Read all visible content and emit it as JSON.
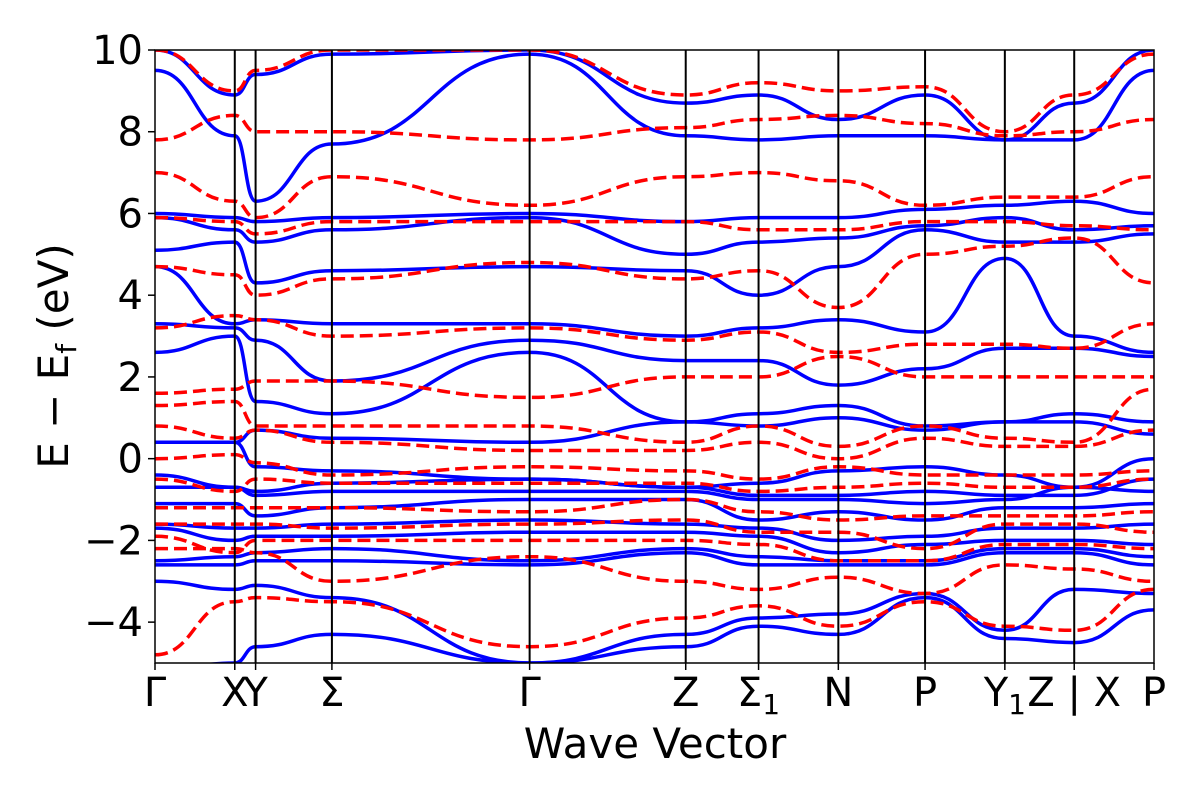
{
  "chart_data": {
    "type": "line",
    "title": "",
    "xlabel": "Wave Vector",
    "ylabel_parts": {
      "main": "E − E",
      "sub": "f",
      "unit": " (eV)"
    },
    "ylim": [
      -5,
      10
    ],
    "yticks": [
      -4,
      -2,
      0,
      2,
      4,
      6,
      8,
      10
    ],
    "ytick_labels": [
      "−4",
      "−2",
      "0",
      "2",
      "4",
      "6",
      "8",
      "10"
    ],
    "grid": false,
    "legend": "none",
    "x_path_coords": [
      0,
      0.23,
      0.29,
      0.51,
      1.08,
      1.53,
      1.74,
      1.97,
      2.22,
      2.45,
      2.65,
      2.88
    ],
    "kpoint_labels": [
      {
        "text": "Γ",
        "sub": ""
      },
      {
        "text": "X",
        "sub": ""
      },
      {
        "text": "Y",
        "sub": ""
      },
      {
        "text": "Σ",
        "sub": ""
      },
      {
        "text": "Γ",
        "sub": ""
      },
      {
        "text": "Z",
        "sub": ""
      },
      {
        "text": "Σ",
        "sub": "1"
      },
      {
        "text": "N",
        "sub": ""
      },
      {
        "text": "P",
        "sub": ""
      },
      {
        "text": "Y",
        "sub": "1"
      },
      {
        "text": "Z | X",
        "sub": ""
      },
      {
        "text": "P",
        "sub": ""
      }
    ],
    "series": [
      {
        "style": "solid",
        "color": "#0000ff",
        "bands": [
          [
            -5.2,
            -5.0,
            -4.6,
            -4.3,
            -5.0,
            -4.6,
            -4.1,
            -4.3,
            -3.4,
            -4.4,
            -4.5,
            -3.7
          ],
          [
            -3.0,
            -3.2,
            -3.1,
            -3.4,
            -5.0,
            -4.3,
            -3.9,
            -3.8,
            -3.3,
            -4.2,
            -3.2,
            -3.3
          ],
          [
            -2.6,
            -2.6,
            -2.5,
            -2.5,
            -2.6,
            -2.3,
            -2.6,
            -2.6,
            -2.6,
            -2.3,
            -2.3,
            -2.6
          ],
          [
            -2.5,
            -2.4,
            -2.3,
            -2.2,
            -2.5,
            -2.2,
            -2.4,
            -2.5,
            -2.5,
            -2.2,
            -2.2,
            -2.4
          ],
          [
            -1.7,
            -2.0,
            -1.9,
            -1.9,
            -1.8,
            -1.8,
            -1.9,
            -2.3,
            -2.1,
            -2.0,
            -2.0,
            -2.1
          ],
          [
            -1.6,
            -1.7,
            -1.7,
            -1.6,
            -1.5,
            -1.6,
            -1.7,
            -2.0,
            -1.9,
            -1.7,
            -1.7,
            -1.6
          ],
          [
            -1.1,
            -1.1,
            -1.4,
            -1.2,
            -1.0,
            -1.0,
            -1.5,
            -1.3,
            -1.5,
            -1.2,
            -1.2,
            -1.1
          ],
          [
            -0.7,
            -0.7,
            -0.9,
            -0.8,
            -0.8,
            -0.8,
            -1.0,
            -1.0,
            -1.1,
            -1.0,
            -0.7,
            -0.8
          ],
          [
            -0.4,
            -0.7,
            -0.8,
            -0.6,
            -0.5,
            -0.7,
            -0.9,
            -0.9,
            -0.8,
            -0.9,
            -0.9,
            -0.5
          ],
          [
            0.4,
            0.4,
            -0.2,
            -0.3,
            -0.5,
            -0.7,
            -0.6,
            -0.3,
            -0.2,
            -0.4,
            -0.7,
            0.0
          ],
          [
            0.4,
            0.4,
            0.7,
            0.5,
            0.4,
            0.9,
            0.8,
            1.0,
            0.7,
            0.9,
            0.9,
            0.6
          ],
          [
            2.6,
            3.0,
            1.4,
            1.1,
            2.6,
            0.9,
            1.1,
            1.3,
            0.8,
            0.9,
            1.1,
            0.9
          ],
          [
            3.3,
            3.2,
            2.9,
            1.9,
            2.9,
            2.4,
            2.4,
            1.8,
            2.2,
            2.7,
            2.7,
            2.5
          ],
          [
            4.7,
            3.3,
            3.4,
            3.3,
            3.3,
            3.0,
            3.2,
            3.4,
            3.1,
            4.9,
            3.0,
            2.6
          ],
          [
            5.1,
            5.3,
            4.3,
            4.6,
            4.7,
            4.6,
            4.0,
            4.7,
            5.6,
            5.3,
            5.3,
            5.5
          ],
          [
            5.9,
            5.6,
            5.3,
            5.6,
            5.9,
            5.0,
            5.3,
            5.4,
            5.7,
            5.9,
            5.6,
            5.7
          ],
          [
            6.0,
            5.9,
            5.8,
            5.9,
            6.0,
            5.8,
            5.9,
            5.9,
            6.1,
            6.2,
            6.3,
            6.0
          ],
          [
            9.5,
            7.9,
            6.3,
            7.7,
            9.9,
            7.9,
            7.8,
            7.9,
            7.9,
            7.8,
            7.8,
            9.5
          ],
          [
            10.0,
            8.9,
            9.4,
            9.9,
            10.0,
            8.7,
            8.9,
            8.3,
            8.9,
            7.8,
            8.7,
            10.0
          ]
        ]
      },
      {
        "style": "dashed",
        "color": "#ff0000",
        "bands": [
          [
            -4.8,
            -3.5,
            -3.4,
            -3.5,
            -4.6,
            -3.9,
            -3.6,
            -4.1,
            -3.5,
            -4.1,
            -4.2,
            -3.2
          ],
          [
            -2.2,
            -2.2,
            -2.3,
            -3.0,
            -2.4,
            -3.0,
            -3.2,
            -2.9,
            -3.3,
            -2.6,
            -2.7,
            -3.0
          ],
          [
            -1.9,
            -2.3,
            -2.0,
            -2.0,
            -2.0,
            -2.0,
            -2.1,
            -2.5,
            -2.5,
            -2.1,
            -2.1,
            -2.2
          ],
          [
            -1.6,
            -1.6,
            -1.6,
            -1.7,
            -1.6,
            -1.5,
            -1.8,
            -1.8,
            -2.2,
            -1.6,
            -1.6,
            -1.8
          ],
          [
            -1.2,
            -1.2,
            -1.2,
            -1.2,
            -1.3,
            -1.0,
            -1.3,
            -1.5,
            -1.4,
            -1.4,
            -1.4,
            -1.3
          ],
          [
            -0.5,
            -0.8,
            -0.5,
            -0.6,
            -0.6,
            -0.6,
            -0.8,
            -0.7,
            -0.6,
            -0.7,
            -0.7,
            -0.5
          ],
          [
            0.0,
            0.1,
            -0.1,
            -0.4,
            -0.2,
            -0.3,
            -0.5,
            -0.2,
            -0.4,
            -0.4,
            -0.4,
            -0.3
          ],
          [
            0.8,
            0.5,
            0.7,
            0.4,
            0.2,
            0.2,
            0.4,
            0.0,
            0.5,
            0.3,
            0.3,
            0.7
          ],
          [
            1.3,
            1.4,
            0.8,
            0.8,
            0.8,
            0.4,
            0.8,
            0.3,
            0.8,
            0.5,
            0.4,
            1.7
          ],
          [
            1.6,
            1.7,
            1.9,
            1.9,
            1.5,
            2.0,
            2.0,
            2.5,
            2.0,
            2.0,
            2.0,
            2.0
          ],
          [
            3.2,
            3.5,
            3.4,
            3.0,
            3.2,
            2.9,
            3.1,
            2.6,
            2.8,
            2.8,
            2.7,
            3.3
          ],
          [
            4.7,
            4.5,
            4.0,
            4.4,
            4.8,
            4.4,
            4.6,
            3.7,
            5.0,
            5.2,
            5.4,
            4.3
          ],
          [
            5.9,
            5.8,
            5.5,
            5.8,
            5.8,
            5.8,
            5.6,
            5.6,
            5.8,
            5.8,
            5.7,
            5.6
          ],
          [
            7.0,
            6.3,
            5.9,
            6.9,
            6.2,
            6.9,
            7.0,
            6.8,
            6.2,
            6.4,
            6.4,
            6.9
          ],
          [
            7.8,
            8.4,
            8.0,
            8.0,
            7.8,
            8.1,
            8.3,
            8.4,
            8.2,
            7.9,
            8.0,
            8.3
          ],
          [
            10.0,
            9.0,
            9.5,
            10.0,
            10.0,
            8.9,
            9.2,
            9.0,
            9.1,
            8.0,
            8.9,
            9.9
          ]
        ]
      }
    ]
  }
}
